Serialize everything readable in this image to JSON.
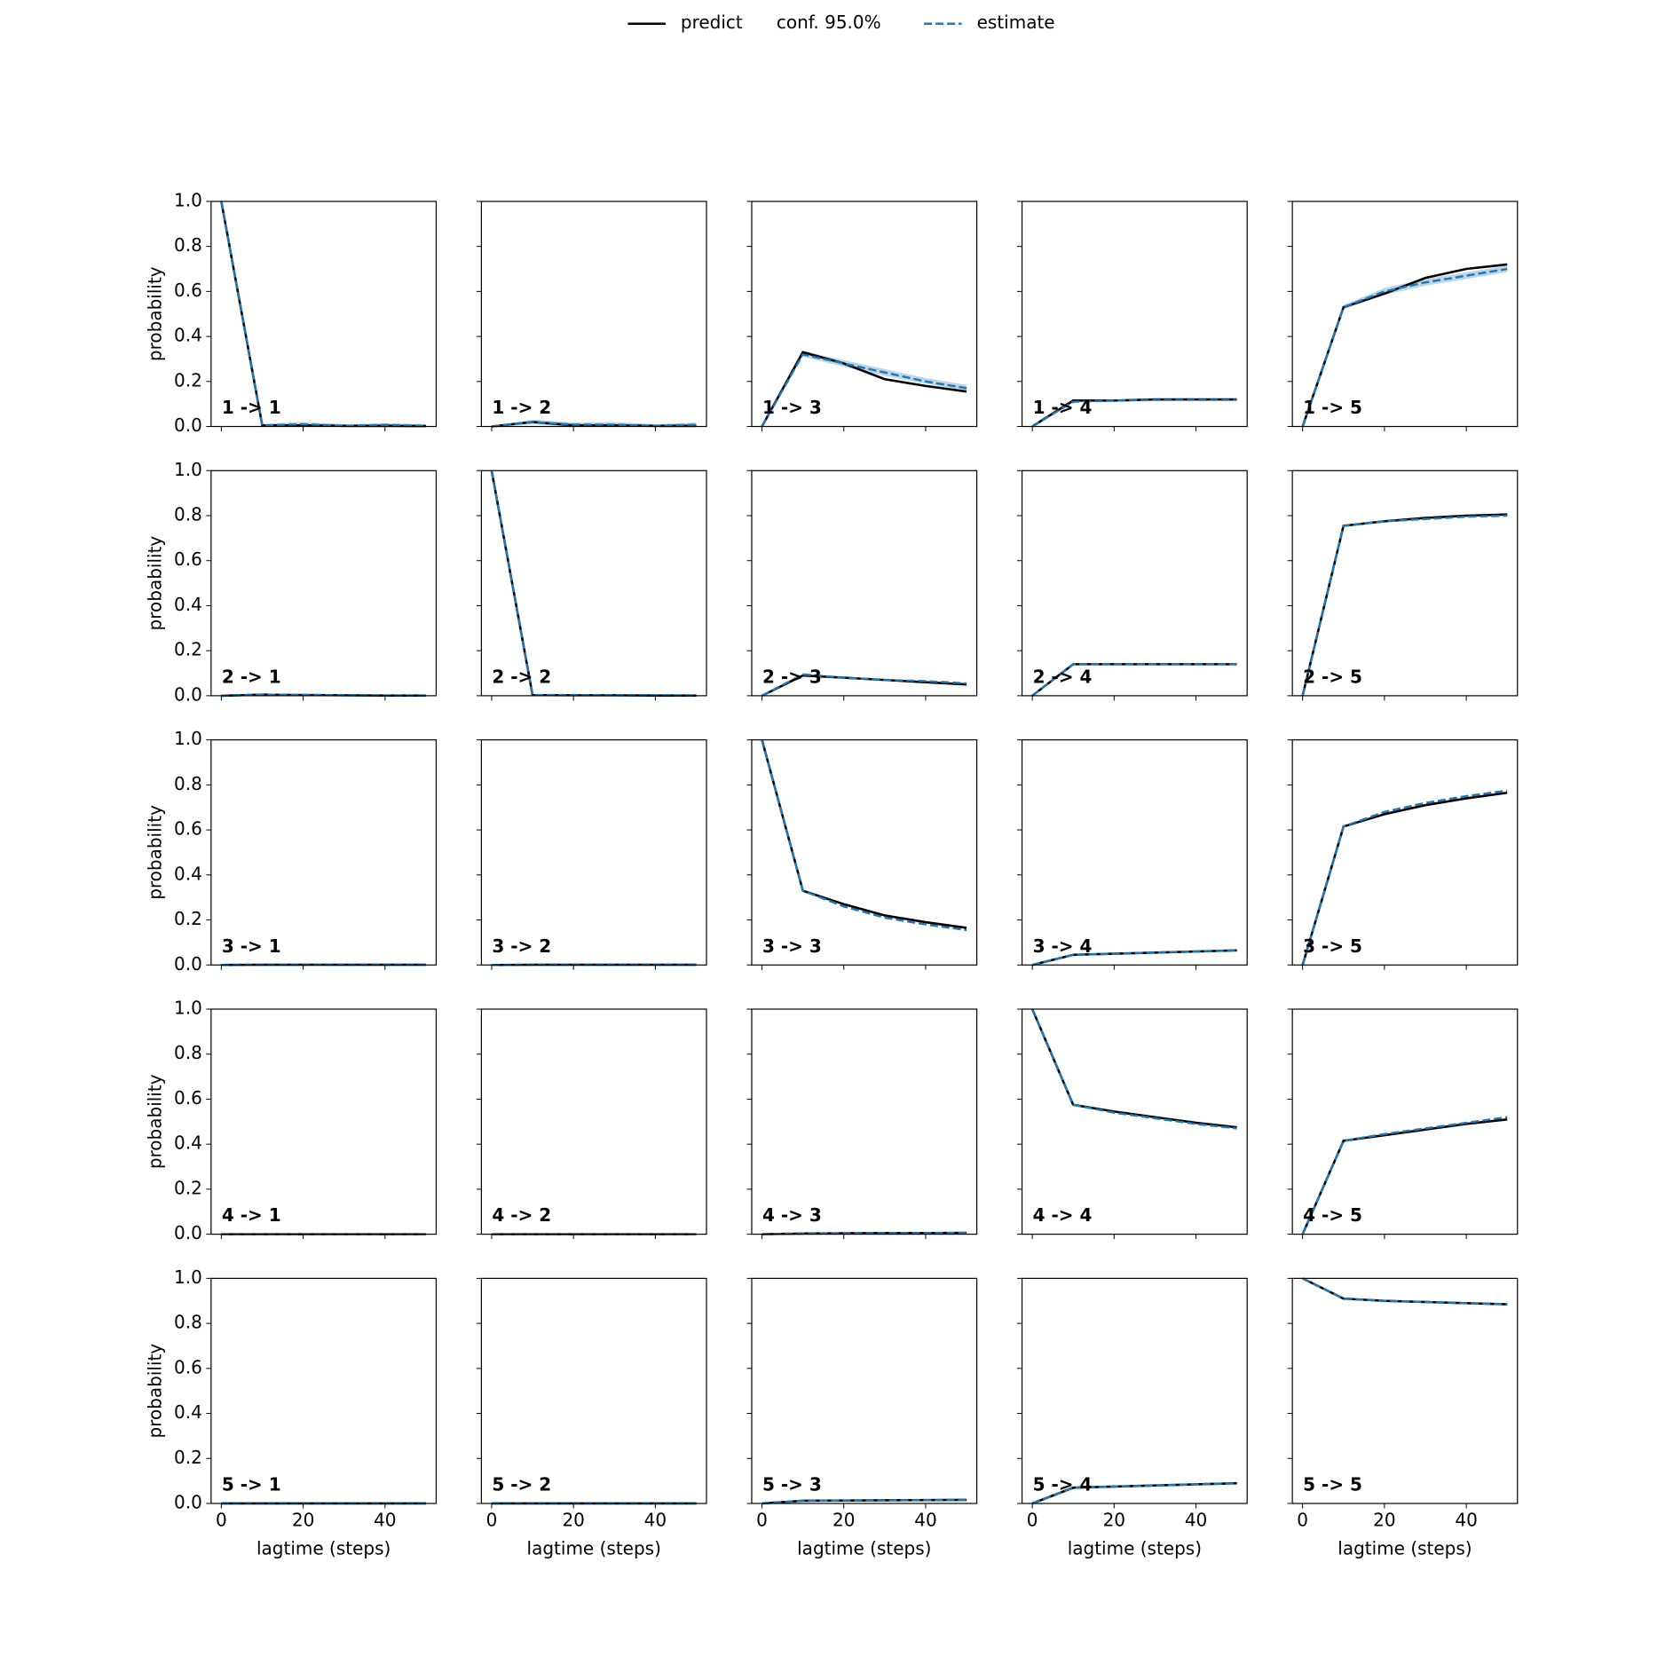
{
  "chart_data": {
    "type": "line",
    "x": [
      0,
      10,
      20,
      30,
      40,
      50
    ],
    "xlim": [
      -2.5,
      52.5
    ],
    "ylim": [
      0,
      1
    ],
    "xticks": [
      0,
      20,
      40
    ],
    "yticks": [
      {
        "value": 0,
        "label": "0.0"
      },
      {
        "value": 0.2,
        "label": "0.2"
      },
      {
        "value": 0.4,
        "label": "0.4"
      },
      {
        "value": 0.6,
        "label": "0.6"
      },
      {
        "value": 0.8,
        "label": "0.8"
      },
      {
        "value": 1,
        "label": "1.0"
      }
    ],
    "xlabel": "lagtime (steps)",
    "ylabel": "probability",
    "legend": [
      {
        "name": "predict",
        "color": "#000000",
        "style": "solid"
      },
      {
        "name": "conf. 95.0%",
        "color": "#1f77b4",
        "style": "band"
      },
      {
        "name": "estimate",
        "color": "#1f77b4",
        "style": "dashed"
      }
    ],
    "panels": [
      {
        "title": "1 -> 1",
        "predict": [
          1,
          0.005,
          0.005,
          0.003,
          0.003,
          0.002
        ],
        "estimate": [
          1,
          0.005,
          0.01,
          0.003,
          0.007,
          0.003
        ],
        "conf_lower": [
          1,
          0,
          0,
          0,
          0,
          0
        ],
        "conf_upper": [
          1,
          0.012,
          0.02,
          0.01,
          0.015,
          0.01
        ]
      },
      {
        "title": "1 -> 2",
        "predict": [
          0,
          0.02,
          0.005,
          0.005,
          0.003,
          0.003
        ],
        "estimate": [
          0,
          0.02,
          0.008,
          0.008,
          0.003,
          0.008
        ],
        "conf_lower": [
          0,
          0.01,
          0,
          0,
          0,
          0
        ],
        "conf_upper": [
          0,
          0.03,
          0.018,
          0.02,
          0.01,
          0.018
        ]
      },
      {
        "title": "1 -> 3",
        "predict": [
          0,
          0.33,
          0.28,
          0.21,
          0.18,
          0.155
        ],
        "estimate": [
          0,
          0.32,
          0.28,
          0.24,
          0.2,
          0.17
        ],
        "conf_lower": [
          0,
          0.31,
          0.265,
          0.225,
          0.19,
          0.16
        ],
        "conf_upper": [
          0,
          0.335,
          0.295,
          0.255,
          0.215,
          0.185
        ]
      },
      {
        "title": "1 -> 4",
        "predict": [
          0,
          0.115,
          0.115,
          0.12,
          0.12,
          0.12
        ],
        "estimate": [
          0,
          0.11,
          0.115,
          0.118,
          0.118,
          0.118
        ]
      },
      {
        "title": "1 -> 5",
        "predict": [
          0,
          0.53,
          0.59,
          0.66,
          0.7,
          0.72
        ],
        "estimate": [
          0,
          0.53,
          0.6,
          0.64,
          0.67,
          0.7
        ],
        "conf_lower": [
          0,
          0.52,
          0.585,
          0.625,
          0.655,
          0.685
        ],
        "conf_upper": [
          0,
          0.54,
          0.615,
          0.655,
          0.685,
          0.715
        ]
      },
      {
        "title": "2 -> 1",
        "predict": [
          0,
          0.005,
          0.003,
          0.002,
          0.001,
          0.001
        ],
        "estimate": [
          0,
          0.005,
          0.004,
          0.002,
          0.001,
          0.001
        ]
      },
      {
        "title": "2 -> 2",
        "predict": [
          1,
          0.003,
          0.002,
          0.002,
          0.001,
          0.001
        ],
        "estimate": [
          1,
          0.003,
          0.003,
          0.002,
          0.002,
          0.001
        ]
      },
      {
        "title": "2 -> 3",
        "predict": [
          0,
          0.09,
          0.08,
          0.07,
          0.06,
          0.05
        ],
        "estimate": [
          0,
          0.095,
          0.08,
          0.07,
          0.065,
          0.055
        ]
      },
      {
        "title": "2 -> 4",
        "predict": [
          0,
          0.14,
          0.14,
          0.14,
          0.14,
          0.14
        ],
        "estimate": [
          0,
          0.14,
          0.14,
          0.14,
          0.14,
          0.14
        ]
      },
      {
        "title": "2 -> 5",
        "predict": [
          0,
          0.755,
          0.775,
          0.79,
          0.8,
          0.805
        ],
        "estimate": [
          0,
          0.755,
          0.775,
          0.785,
          0.795,
          0.8
        ]
      },
      {
        "title": "3 -> 1",
        "predict": [
          0,
          0.001,
          0.001,
          0.001,
          0.001,
          0.001
        ],
        "estimate": [
          0,
          0.001,
          0.001,
          0.001,
          0.001,
          0.001
        ]
      },
      {
        "title": "3 -> 2",
        "predict": [
          0,
          0.001,
          0.001,
          0.001,
          0.001,
          0.001
        ],
        "estimate": [
          0,
          0.001,
          0.001,
          0.001,
          0.001,
          0.001
        ]
      },
      {
        "title": "3 -> 3",
        "predict": [
          1,
          0.33,
          0.27,
          0.22,
          0.19,
          0.165
        ],
        "estimate": [
          1,
          0.33,
          0.26,
          0.21,
          0.18,
          0.155
        ]
      },
      {
        "title": "3 -> 4",
        "predict": [
          0,
          0.045,
          0.05,
          0.055,
          0.06,
          0.065
        ],
        "estimate": [
          0,
          0.045,
          0.05,
          0.055,
          0.06,
          0.065
        ]
      },
      {
        "title": "3 -> 5",
        "predict": [
          0,
          0.615,
          0.67,
          0.71,
          0.74,
          0.765
        ],
        "estimate": [
          0,
          0.615,
          0.68,
          0.72,
          0.75,
          0.775
        ]
      },
      {
        "title": "4 -> 1",
        "predict": [
          0,
          0,
          0,
          0,
          0,
          0
        ],
        "estimate": [
          0,
          0,
          0,
          0,
          0,
          0
        ]
      },
      {
        "title": "4 -> 2",
        "predict": [
          0,
          0,
          0,
          0,
          0,
          0
        ],
        "estimate": [
          0,
          0,
          0,
          0,
          0,
          0
        ]
      },
      {
        "title": "4 -> 3",
        "predict": [
          0,
          0.003,
          0.004,
          0.005,
          0.005,
          0.006
        ],
        "estimate": [
          0,
          0.003,
          0.004,
          0.005,
          0.005,
          0.006
        ]
      },
      {
        "title": "4 -> 4",
        "predict": [
          1,
          0.575,
          0.545,
          0.52,
          0.495,
          0.475
        ],
        "estimate": [
          1,
          0.575,
          0.54,
          0.515,
          0.49,
          0.47
        ]
      },
      {
        "title": "4 -> 5",
        "predict": [
          0,
          0.415,
          0.44,
          0.465,
          0.49,
          0.51
        ],
        "estimate": [
          0,
          0.415,
          0.445,
          0.47,
          0.495,
          0.52
        ]
      },
      {
        "title": "5 -> 1",
        "predict": [
          0,
          0,
          0,
          0,
          0,
          0
        ],
        "estimate": [
          0,
          0,
          0,
          0,
          0,
          0
        ]
      },
      {
        "title": "5 -> 2",
        "predict": [
          0,
          0,
          0,
          0,
          0,
          0
        ],
        "estimate": [
          0,
          0,
          0,
          0,
          0,
          0
        ]
      },
      {
        "title": "5 -> 3",
        "predict": [
          0,
          0.012,
          0.013,
          0.014,
          0.015,
          0.016
        ],
        "estimate": [
          0,
          0.012,
          0.013,
          0.014,
          0.015,
          0.016
        ]
      },
      {
        "title": "5 -> 4",
        "predict": [
          0,
          0.07,
          0.075,
          0.08,
          0.085,
          0.09
        ],
        "estimate": [
          0,
          0.07,
          0.075,
          0.08,
          0.085,
          0.09
        ]
      },
      {
        "title": "5 -> 5",
        "predict": [
          1,
          0.91,
          0.9,
          0.895,
          0.89,
          0.885
        ],
        "estimate": [
          1,
          0.91,
          0.9,
          0.895,
          0.89,
          0.885
        ]
      }
    ]
  }
}
